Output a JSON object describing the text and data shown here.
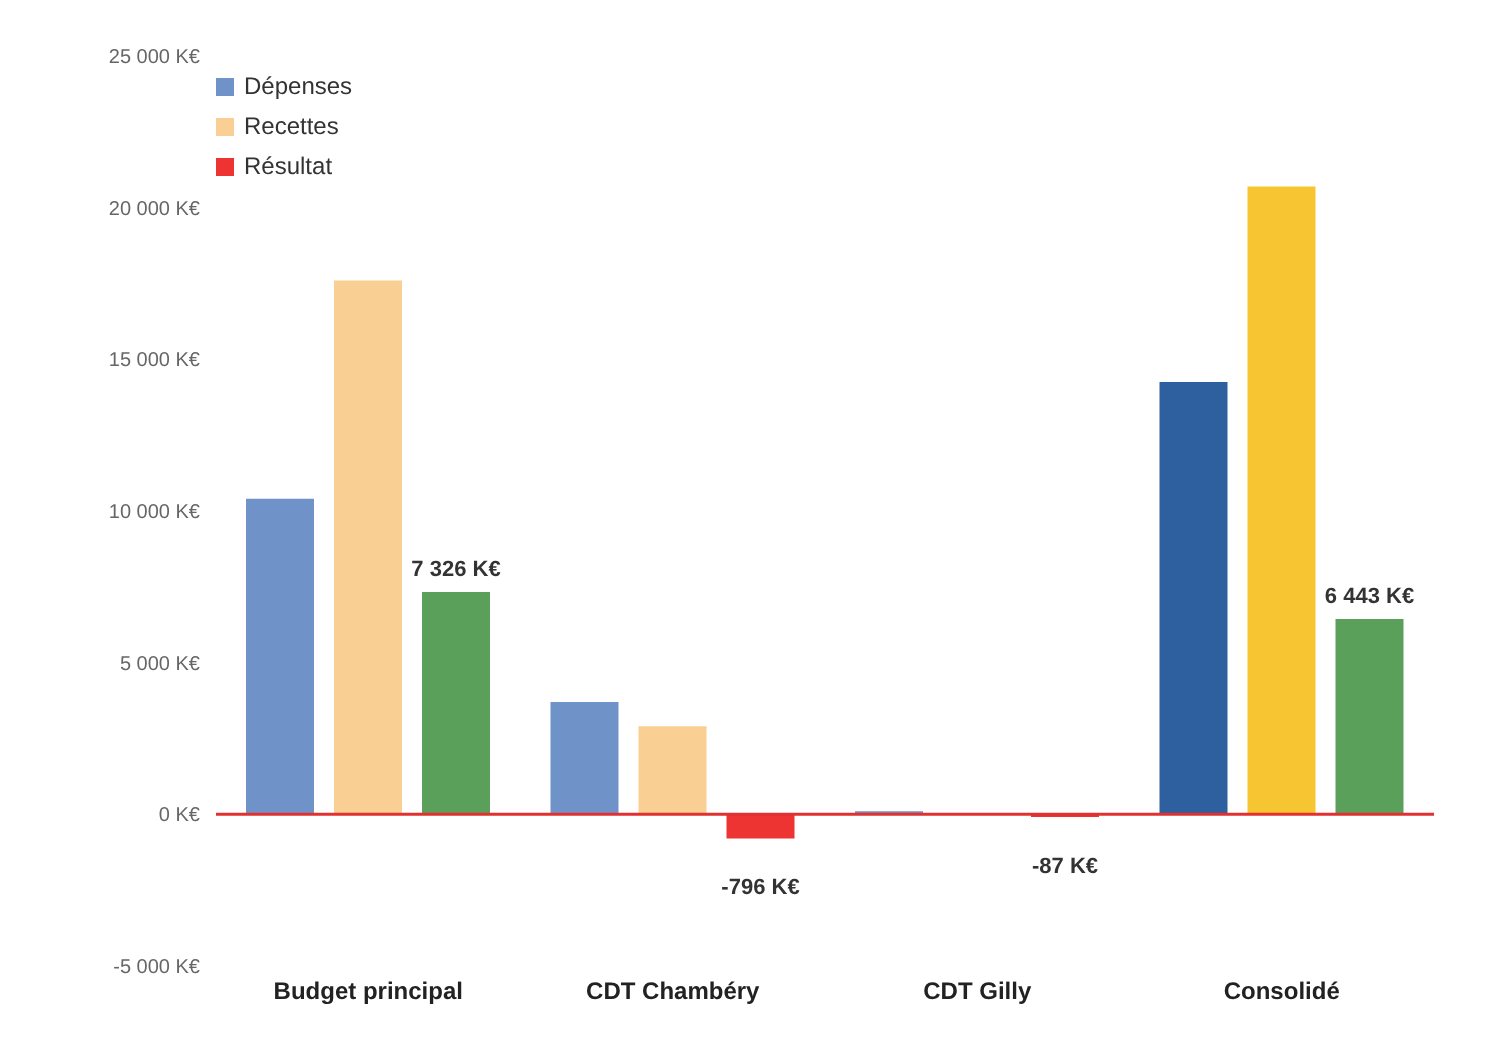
{
  "chart_data": {
    "type": "bar",
    "categories": [
      "Budget principal",
      "CDT Chambéry",
      "CDT Gilly",
      "Consolidé"
    ],
    "series": [
      {
        "name": "Dépenses",
        "color": "#6f93c9",
        "colors": [
          "#6f93c9",
          "#6f93c9",
          "#6f93c9",
          "#2e5f9e"
        ],
        "values": [
          10400,
          3700,
          100,
          14250
        ]
      },
      {
        "name": "Recettes",
        "color": "#f9cf94",
        "colors": [
          "#f9cf94",
          "#f9cf94",
          "#f9cf94",
          "#f6c531"
        ],
        "values": [
          17600,
          2900,
          0,
          20700
        ]
      },
      {
        "name": "Résultat",
        "color": "#ee3333",
        "colors": [
          "#5aa05a",
          "#ee3333",
          "#ee3333",
          "#5aa05a"
        ],
        "values": [
          7326,
          -796,
          -87,
          6443
        ],
        "value_labels": [
          "7 326 K€",
          "-796 K€",
          "-87 K€",
          "6 443 K€"
        ]
      }
    ],
    "ylim": [
      -5000,
      25000
    ],
    "yticks": [
      {
        "value": -5000,
        "label": "-5 000 K€"
      },
      {
        "value": 0,
        "label": "0 K€"
      },
      {
        "value": 5000,
        "label": "5 000 K€"
      },
      {
        "value": 10000,
        "label": "10 000 K€"
      },
      {
        "value": 15000,
        "label": "15 000 K€"
      },
      {
        "value": 20000,
        "label": "20 000 K€"
      },
      {
        "value": 25000,
        "label": "25 000 K€"
      }
    ],
    "ref_lines": [
      {
        "axis": "y",
        "value": 0,
        "color": "#e03030"
      }
    ],
    "legend": "top left",
    "grid": false
  }
}
